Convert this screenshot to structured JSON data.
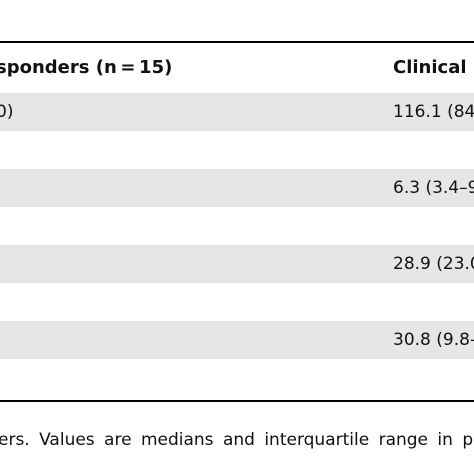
{
  "table": {
    "headers": [
      "sponders (n = 15)",
      "Clinical"
    ],
    "rows": [
      {
        "shaded": true,
        "c1": "0)",
        "c2": "116.1 (84"
      },
      {
        "shaded": false,
        "c1": "",
        "c2": ""
      },
      {
        "shaded": true,
        "c1": "",
        "c2": "6.3 (3.4–9"
      },
      {
        "shaded": false,
        "c1": "",
        "c2": ""
      },
      {
        "shaded": true,
        "c1": "",
        "c2": "28.9 (23.0"
      },
      {
        "shaded": false,
        "c1": "",
        "c2": ""
      },
      {
        "shaded": true,
        "c1": "",
        "c2": "30.8 (9.8–"
      },
      {
        "shaded": false,
        "c1": "",
        "c2": ""
      }
    ]
  },
  "footnote": "ers. Values are medians and interquartile range in p"
}
